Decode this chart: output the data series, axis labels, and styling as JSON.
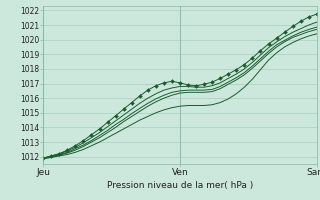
{
  "xlabel": "Pression niveau de la mer( hPa )",
  "bg_color": "#cce8dc",
  "grid_color": "#aacfbe",
  "line_color": "#1a5c2e",
  "ylim": [
    1011.5,
    1022.3
  ],
  "xlim": [
    0,
    48
  ],
  "xtick_positions": [
    0,
    24,
    48
  ],
  "xtick_labels": [
    "Jeu",
    "Ven",
    "Sam"
  ],
  "ytick_positions": [
    1012,
    1013,
    1014,
    1015,
    1016,
    1017,
    1018,
    1019,
    1020,
    1021,
    1022
  ],
  "series": [
    [
      1011.9,
      1012.05,
      1012.2,
      1012.45,
      1012.75,
      1013.1,
      1013.5,
      1013.9,
      1014.35,
      1014.8,
      1015.25,
      1015.7,
      1016.15,
      1016.55,
      1016.85,
      1017.05,
      1017.15,
      1017.05,
      1016.9,
      1016.85,
      1016.95,
      1017.1,
      1017.35,
      1017.65,
      1017.95,
      1018.3,
      1018.75,
      1019.25,
      1019.7,
      1020.1,
      1020.5,
      1020.9,
      1021.25,
      1021.55,
      1021.75
    ],
    [
      1011.9,
      1012.05,
      1012.2,
      1012.4,
      1012.65,
      1012.95,
      1013.3,
      1013.65,
      1014.05,
      1014.45,
      1014.85,
      1015.25,
      1015.65,
      1016.0,
      1016.3,
      1016.55,
      1016.7,
      1016.8,
      1016.8,
      1016.75,
      1016.75,
      1016.85,
      1017.05,
      1017.35,
      1017.65,
      1018.0,
      1018.45,
      1018.95,
      1019.45,
      1019.85,
      1020.2,
      1020.5,
      1020.75,
      1021.0,
      1021.2
    ],
    [
      1011.9,
      1012.0,
      1012.15,
      1012.3,
      1012.55,
      1012.8,
      1013.1,
      1013.45,
      1013.8,
      1014.2,
      1014.55,
      1014.95,
      1015.3,
      1015.65,
      1015.95,
      1016.2,
      1016.4,
      1016.5,
      1016.55,
      1016.55,
      1016.55,
      1016.6,
      1016.8,
      1017.1,
      1017.4,
      1017.75,
      1018.2,
      1018.7,
      1019.2,
      1019.65,
      1019.95,
      1020.25,
      1020.5,
      1020.7,
      1020.85
    ],
    [
      1011.9,
      1012.0,
      1012.1,
      1012.25,
      1012.45,
      1012.7,
      1013.0,
      1013.3,
      1013.65,
      1014.0,
      1014.4,
      1014.75,
      1015.1,
      1015.45,
      1015.75,
      1016.0,
      1016.2,
      1016.35,
      1016.4,
      1016.4,
      1016.4,
      1016.45,
      1016.65,
      1016.95,
      1017.25,
      1017.6,
      1018.05,
      1018.55,
      1019.05,
      1019.5,
      1019.85,
      1020.15,
      1020.35,
      1020.55,
      1020.7
    ],
    [
      1011.85,
      1011.95,
      1012.05,
      1012.15,
      1012.3,
      1012.5,
      1012.75,
      1013.0,
      1013.3,
      1013.6,
      1013.9,
      1014.2,
      1014.5,
      1014.75,
      1015.0,
      1015.2,
      1015.35,
      1015.45,
      1015.5,
      1015.5,
      1015.5,
      1015.55,
      1015.7,
      1015.95,
      1016.3,
      1016.75,
      1017.3,
      1017.95,
      1018.6,
      1019.1,
      1019.5,
      1019.8,
      1020.05,
      1020.25,
      1020.4
    ]
  ],
  "num_points": 35,
  "figsize": [
    3.2,
    2.0
  ],
  "dpi": 100
}
